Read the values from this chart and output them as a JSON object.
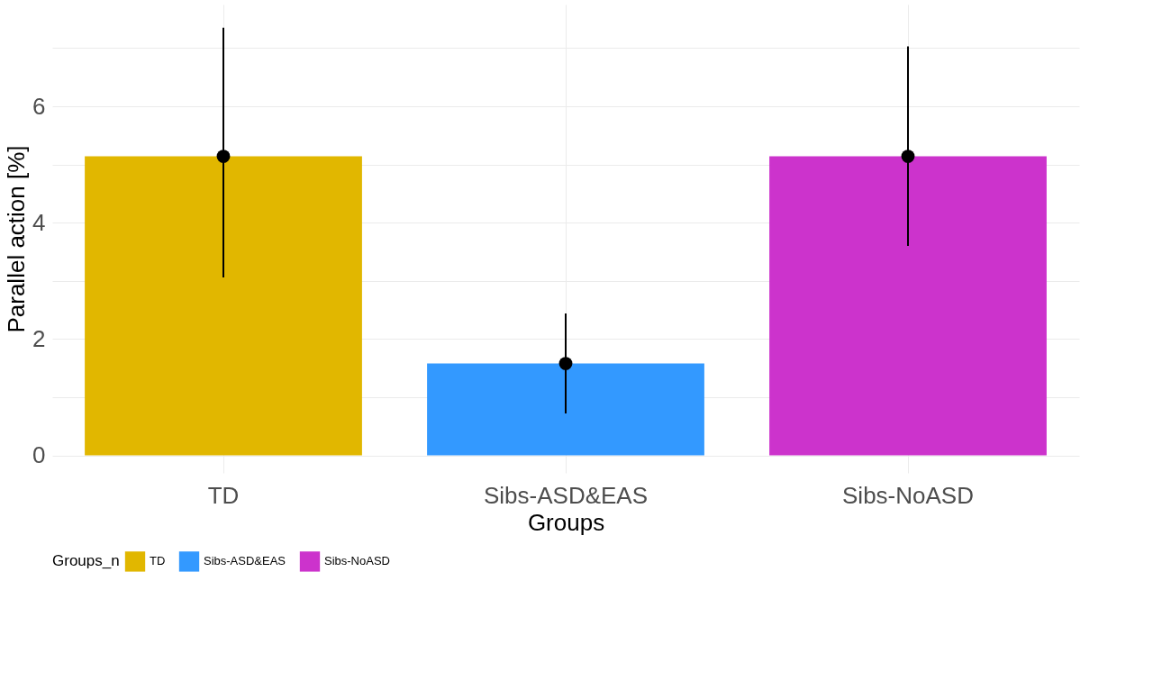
{
  "chart_data": {
    "type": "bar",
    "xlabel": "Groups",
    "ylabel": "Parallel action [%]",
    "legend_title": "Groups_n",
    "legend": "bottom",
    "categories": [
      "TD",
      "Sibs-ASD&EAS",
      "Sibs-NoASD"
    ],
    "series": [
      {
        "name": "TD",
        "color": "#e1b700",
        "values": [
          5.14,
          null,
          null
        ]
      },
      {
        "name": "Sibs-ASD&EAS",
        "color": "#3399ff",
        "values": [
          null,
          1.58,
          null
        ]
      },
      {
        "name": "Sibs-NoASD",
        "color": "#cc33cc",
        "values": [
          null,
          null,
          5.14
        ]
      },
      {
        "type": "scatter",
        "x": [
          "TD",
          "Sibs-ASD&EAS",
          "Sibs-NoASD"
        ],
        "values": [
          5.14,
          1.58,
          5.14
        ],
        "color": "#000000",
        "errors": [
          [
            3.06,
            7.35
          ],
          [
            0.72,
            2.44
          ],
          [
            3.6,
            7.03
          ]
        ]
      }
    ],
    "marker": "circle",
    "ylim": [
      -0.3,
      7.75
    ],
    "yticks": [
      0,
      2,
      4,
      6,
      {
        "value": 1,
        "label": null
      },
      {
        "value": 3,
        "label": null
      },
      {
        "value": 5,
        "label": null
      },
      {
        "value": 7,
        "label": null
      }
    ],
    "grid": true
  }
}
